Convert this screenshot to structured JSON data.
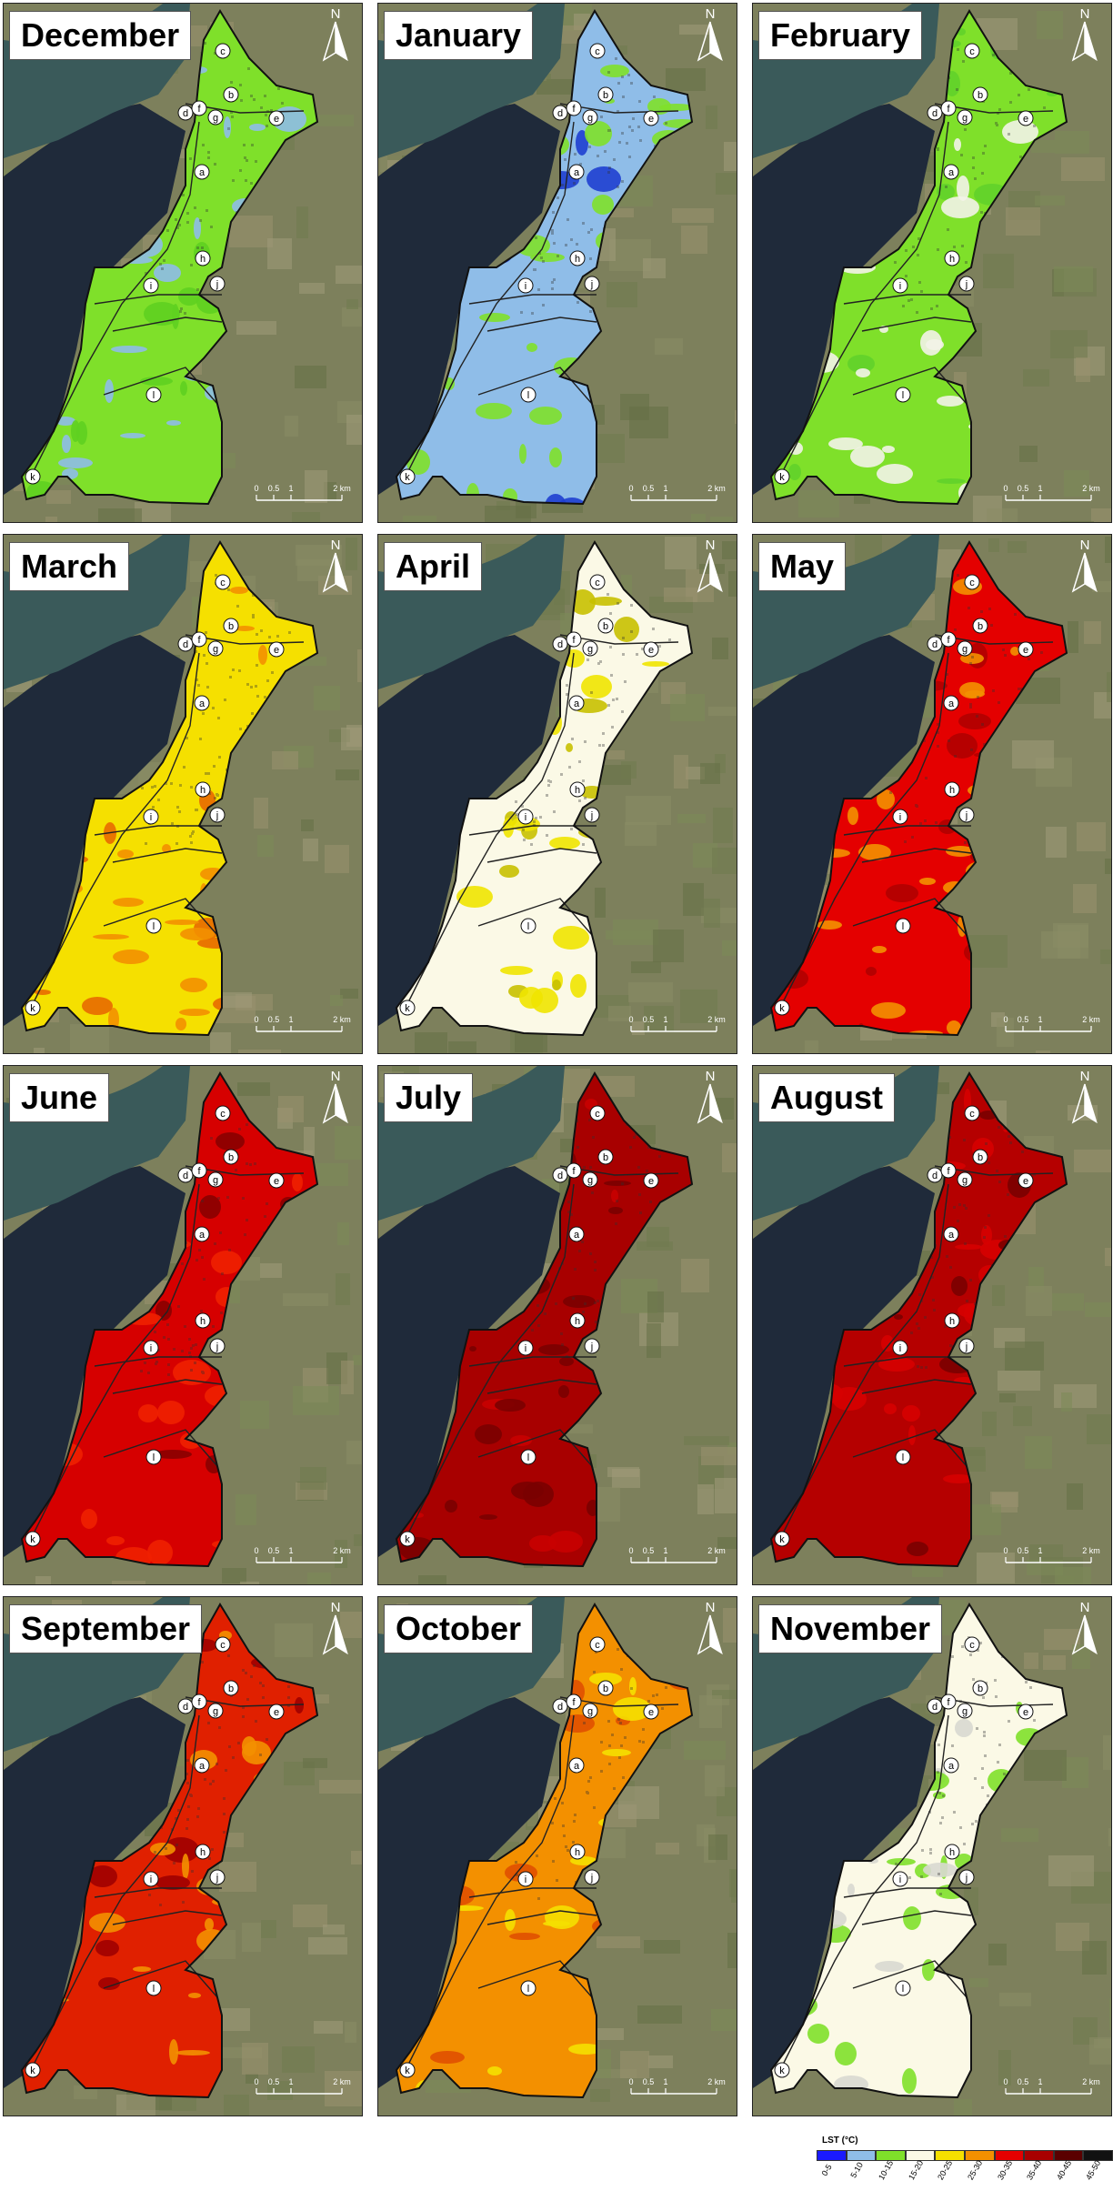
{
  "panels": [
    {
      "month": "December",
      "base": "#7fe02a",
      "patch": "#8fbde8",
      "patch2": "#5fd020"
    },
    {
      "month": "January",
      "base": "#8fbde8",
      "patch": "#7fe02a",
      "patch2": "#1f3fd0"
    },
    {
      "month": "February",
      "base": "#7fe02a",
      "patch": "#f3f3e8",
      "patch2": "#62d22a"
    },
    {
      "month": "March",
      "base": "#f5e000",
      "patch": "#f39000",
      "patch2": "#e86a00"
    },
    {
      "month": "April",
      "base": "#fbf9e6",
      "patch": "#efe400",
      "patch2": "#c8c000"
    },
    {
      "month": "May",
      "base": "#e40000",
      "patch": "#f39000",
      "patch2": "#b00000"
    },
    {
      "month": "June",
      "base": "#d60000",
      "patch": "#f02000",
      "patch2": "#8a0000"
    },
    {
      "month": "July",
      "base": "#a80000",
      "patch": "#7a0000",
      "patch2": "#c80000"
    },
    {
      "month": "August",
      "base": "#b50000",
      "patch": "#d60000",
      "patch2": "#7a0000"
    },
    {
      "month": "September",
      "base": "#e02000",
      "patch": "#f39000",
      "patch2": "#a00000"
    },
    {
      "month": "October",
      "base": "#f39000",
      "patch": "#f5e000",
      "patch2": "#e05000"
    },
    {
      "month": "November",
      "base": "#fbf9e6",
      "patch": "#7fe02a",
      "patch2": "#d8d8d0"
    }
  ],
  "point_labels": [
    "a",
    "b",
    "c",
    "d",
    "e",
    "f",
    "g",
    "h",
    "i",
    "j",
    "k",
    "l"
  ],
  "scale_ticks": [
    "0",
    "0.5",
    "1",
    "2 km"
  ],
  "north": "N",
  "legend": {
    "title": "LST (°C)",
    "classes": [
      {
        "label": "0-5",
        "color": "#1a1aff"
      },
      {
        "label": "5-10",
        "color": "#8fbde8"
      },
      {
        "label": "10-15",
        "color": "#7fe02a"
      },
      {
        "label": "15-20",
        "color": "#fbf9e6"
      },
      {
        "label": "20-25",
        "color": "#f5e000"
      },
      {
        "label": "25-30",
        "color": "#f39000"
      },
      {
        "label": "30-35",
        "color": "#e40000"
      },
      {
        "label": "35-40",
        "color": "#a80000"
      },
      {
        "label": "40-45",
        "color": "#5a0000"
      },
      {
        "label": "45-50",
        "color": "#111111"
      }
    ]
  }
}
